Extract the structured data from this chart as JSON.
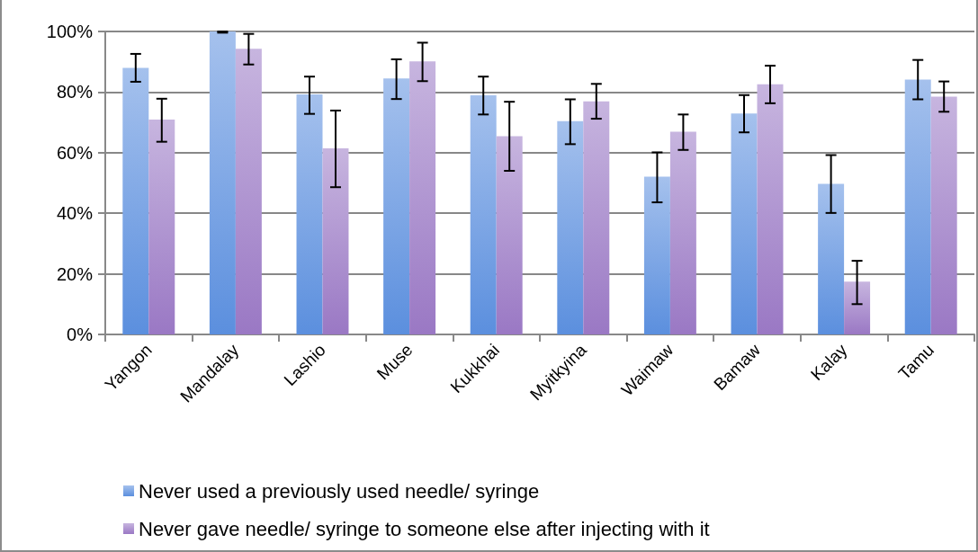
{
  "chart_data": {
    "type": "bar",
    "categories": [
      "Yangon",
      "Mandalay",
      "Lashio",
      "Muse",
      "Kukkhai",
      "Myitkyina",
      "Waimaw",
      "Bamaw",
      "Kalay",
      "Tamu"
    ],
    "series": [
      {
        "name": "Never used a previously used needle/ syringe",
        "color": "#5b8fde",
        "values": [
          88.0,
          100,
          79.2,
          84.5,
          78.9,
          70.4,
          52.1,
          72.9,
          49.7,
          84.1
        ],
        "errors": [
          [
            83.4,
            92.6
          ],
          [
            99.6,
            100
          ],
          [
            72.8,
            85.1
          ],
          [
            77.7,
            90.8
          ],
          [
            72.6,
            85.1
          ],
          [
            62.8,
            77.6
          ],
          [
            43.6,
            60.1
          ],
          [
            66.7,
            79.0
          ],
          [
            40.1,
            59.2
          ],
          [
            77.6,
            90.6
          ]
        ]
      },
      {
        "name": "Never gave needle/ syringe to someone else after injecting with it",
        "color": "#9a78c4",
        "values": [
          70.9,
          94.3,
          61.4,
          90.1,
          65.4,
          76.9,
          66.9,
          82.6,
          17.4,
          78.5
        ],
        "errors": [
          [
            63.6,
            77.8
          ],
          [
            89.1,
            99.2
          ],
          [
            48.6,
            73.9
          ],
          [
            83.6,
            96.3
          ],
          [
            54.0,
            76.8
          ],
          [
            71.2,
            82.7
          ],
          [
            60.9,
            72.6
          ],
          [
            76.3,
            88.7
          ],
          [
            10.0,
            24.3
          ],
          [
            73.5,
            83.5
          ]
        ]
      }
    ],
    "ylim": [
      0,
      100
    ],
    "yticks": [
      {
        "value": 0,
        "label": "0%"
      },
      {
        "value": 20,
        "label": "20%"
      },
      {
        "value": 40,
        "label": "40%"
      },
      {
        "value": 60,
        "label": "60%"
      },
      {
        "value": 80,
        "label": "80%"
      },
      {
        "value": 100,
        "label": "100%"
      }
    ],
    "grid": "y",
    "legend": "bottom"
  }
}
